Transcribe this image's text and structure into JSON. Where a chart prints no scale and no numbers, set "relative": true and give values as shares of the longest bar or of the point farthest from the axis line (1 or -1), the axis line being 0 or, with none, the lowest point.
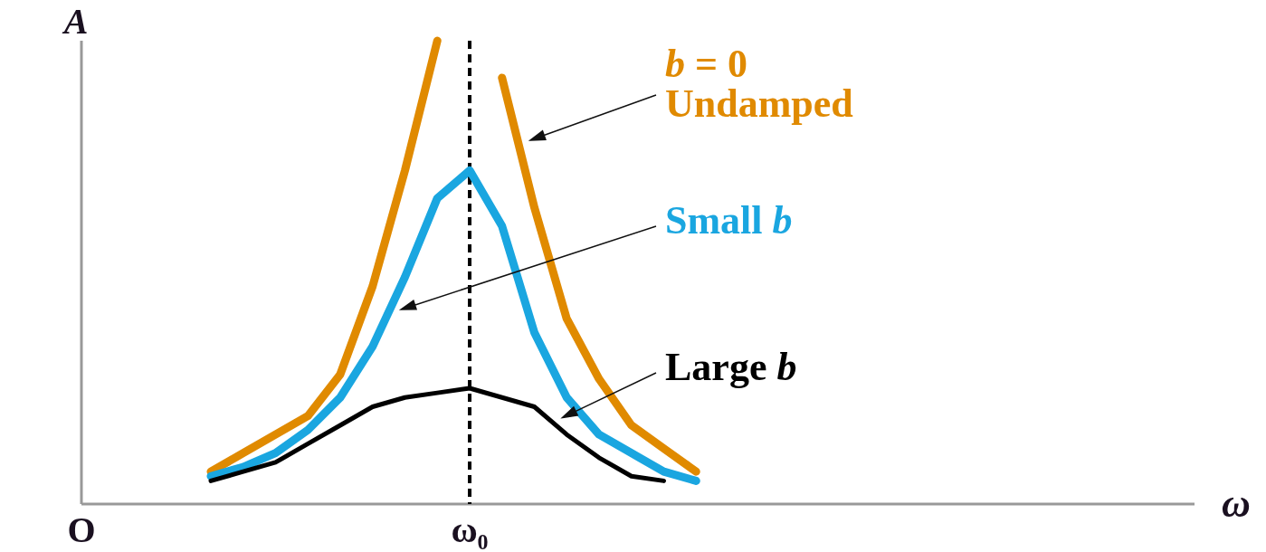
{
  "chart_data": {
    "type": "line",
    "relative": true,
    "xlabel": "ω",
    "ylabel": "A",
    "legend": "right",
    "grid": false,
    "marker": "none",
    "line_style": "solid",
    "categories": [
      "O",
      null,
      null,
      null,
      null,
      null,
      null,
      null,
      null,
      null,
      null,
      null,
      "ω₀",
      null,
      null,
      null,
      null,
      null,
      null,
      null,
      null,
      null,
      null,
      null,
      null,
      null,
      null,
      null,
      null,
      null,
      null,
      null,
      null,
      null,
      null
    ],
    "ref_lines": [
      {
        "axis": "x",
        "value": "ω₀",
        "color": "#000000",
        "line_style": "dashed"
      }
    ],
    "series": [
      {
        "name": "b = 0\nUndamped",
        "color": "#e08a00",
        "values": [
          null,
          null,
          null,
          null,
          0.07,
          0.11,
          0.15,
          0.19,
          0.28,
          0.47,
          0.72,
          1.0,
          null,
          0.92,
          0.64,
          0.4,
          0.27,
          0.17,
          0.12,
          0.07,
          null,
          null,
          null,
          null,
          null,
          null,
          null,
          null,
          null,
          null,
          null,
          null,
          null,
          null,
          null
        ]
      },
      {
        "name": "Small b",
        "color": "#1aa6e0",
        "values": [
          null,
          null,
          null,
          null,
          0.06,
          0.08,
          0.11,
          0.16,
          0.23,
          0.34,
          0.49,
          0.66,
          0.72,
          0.6,
          0.37,
          0.23,
          0.15,
          0.11,
          0.07,
          0.05,
          null,
          null,
          null,
          null,
          null,
          null,
          null,
          null,
          null,
          null,
          null,
          null,
          null,
          null,
          null
        ]
      },
      {
        "name": "Large b",
        "color": "#000000",
        "values": [
          null,
          null,
          null,
          null,
          0.05,
          0.07,
          0.09,
          0.13,
          0.17,
          0.21,
          0.23,
          0.24,
          0.25,
          0.23,
          0.21,
          0.15,
          0.1,
          0.06,
          0.05,
          null,
          null,
          null,
          null,
          null,
          null,
          null,
          null,
          null,
          null,
          null,
          null,
          null,
          null,
          null,
          null
        ]
      }
    ]
  }
}
